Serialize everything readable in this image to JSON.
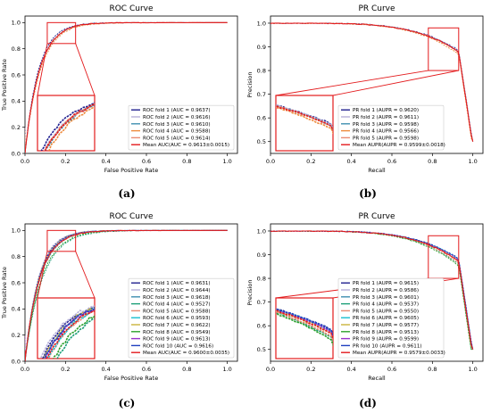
{
  "chart_data": [
    {
      "id": "a",
      "type": "line",
      "kind": "roc",
      "title": "ROC Curve",
      "xlabel": "False Positive Rate",
      "ylabel": "True Positive Rate",
      "xlim": [
        0,
        1.05
      ],
      "ylim": [
        0,
        1.05
      ],
      "xticks": [
        "0.0",
        "0.2",
        "0.4",
        "0.6",
        "0.8",
        "1.0"
      ],
      "yticks": [
        "0.0",
        "0.2",
        "0.4",
        "0.6",
        "0.8",
        "1.0"
      ],
      "legend_position": "lower-right",
      "zoom_window": {
        "x": [
          0.11,
          0.25
        ],
        "y": [
          0.84,
          1.0
        ]
      },
      "series": [
        {
          "name": "ROC fold 1 (AUC = 0.9637)",
          "color": "#1f1f8f",
          "value": 0.9637
        },
        {
          "name": "ROC fold 2 (AUC = 0.9616)",
          "color": "#b7b1d8",
          "value": 0.9616
        },
        {
          "name": "ROC fold 3 (AUC = 0.9610)",
          "color": "#3f8fb0",
          "value": 0.961
        },
        {
          "name": "ROC fold 4 (AUC = 0.9588)",
          "color": "#ee8a3b",
          "value": 0.9588
        },
        {
          "name": "ROC fold 5 (AUC = 0.9614)",
          "color": "#e98b73",
          "value": 0.9614
        },
        {
          "name": "Mean AUC(AUC = 0.9613±0.0015)",
          "color": "#e31a1c",
          "value": 0.9613
        }
      ]
    },
    {
      "id": "b",
      "type": "line",
      "kind": "pr",
      "title": "PR Curve",
      "xlabel": "Recall",
      "ylabel": "Precision",
      "xlim": [
        0,
        1.05
      ],
      "ylim": [
        0.45,
        1.03
      ],
      "xticks": [
        "0.0",
        "0.2",
        "0.4",
        "0.6",
        "0.8",
        "1.0"
      ],
      "yticks": [
        "0.5",
        "0.6",
        "0.7",
        "0.8",
        "0.9",
        "1.0"
      ],
      "legend_position": "lower-left",
      "zoom_window": {
        "x": [
          0.78,
          0.93
        ],
        "y": [
          0.8,
          0.98
        ]
      },
      "series": [
        {
          "name": "PR fold 1 (AUPR = 0.9620)",
          "color": "#1f1f8f",
          "value": 0.962
        },
        {
          "name": "PR fold 2 (AUPR = 0.9611)",
          "color": "#b7b1d8",
          "value": 0.9611
        },
        {
          "name": "PR fold 3 (AUPR = 0.9598)",
          "color": "#3f8fb0",
          "value": 0.9598
        },
        {
          "name": "PR fold 4 (AUPR = 0.9566)",
          "color": "#ee8a3b",
          "value": 0.9566
        },
        {
          "name": "PR fold 5 (AUPR = 0.9598)",
          "color": "#e98b73",
          "value": 0.9598
        },
        {
          "name": "Mean AUPR(AUPR = 0.9599±0.0018)",
          "color": "#e31a1c",
          "value": 0.9599
        }
      ]
    },
    {
      "id": "c",
      "type": "line",
      "kind": "roc",
      "title": "ROC Curve",
      "xlabel": "False Positive Rate",
      "ylabel": "True Positive Rate",
      "xlim": [
        0,
        1.05
      ],
      "ylim": [
        0,
        1.05
      ],
      "xticks": [
        "0.0",
        "0.2",
        "0.4",
        "0.6",
        "0.8",
        "1.0"
      ],
      "yticks": [
        "0.0",
        "0.2",
        "0.4",
        "0.6",
        "0.8",
        "1.0"
      ],
      "legend_position": "lower-right",
      "zoom_window": {
        "x": [
          0.11,
          0.25
        ],
        "y": [
          0.84,
          1.0
        ]
      },
      "series": [
        {
          "name": "ROC fold 1 (AUC = 0.9631)",
          "color": "#1f1f8f",
          "value": 0.9631
        },
        {
          "name": "ROC fold 2 (AUC = 0.9644)",
          "color": "#b7b1d8",
          "value": 0.9644
        },
        {
          "name": "ROC fold 3 (AUC = 0.9618)",
          "color": "#3f8fb0",
          "value": 0.9618
        },
        {
          "name": "ROC fold 4 (AUC = 0.9527)",
          "color": "#1b9e77",
          "value": 0.9527
        },
        {
          "name": "ROC fold 5 (AUC = 0.9588)",
          "color": "#e98b73",
          "value": 0.9588
        },
        {
          "name": "ROC fold 6 (AUC = 0.9593)",
          "color": "#17becf",
          "value": 0.9593
        },
        {
          "name": "ROC fold 7 (AUC = 0.9622)",
          "color": "#c9b33a",
          "value": 0.9622
        },
        {
          "name": "ROC fold 8 (AUC = 0.9549)",
          "color": "#2ca02c",
          "value": 0.9549
        },
        {
          "name": "ROC fold 9 (AUC = 0.9613)",
          "color": "#9932cc",
          "value": 0.9613
        },
        {
          "name": "ROC fold 10 (AUC = 0.9616)",
          "color": "#1f3fbf",
          "value": 0.9616
        },
        {
          "name": "Mean AUC(AUC = 0.9600±0.0035)",
          "color": "#e31a1c",
          "value": 0.96
        }
      ]
    },
    {
      "id": "d",
      "type": "line",
      "kind": "pr",
      "title": "PR Curve",
      "xlabel": "Recall",
      "ylabel": "Precision",
      "xlim": [
        0,
        1.05
      ],
      "ylim": [
        0.45,
        1.03
      ],
      "xticks": [
        "0.0",
        "0.2",
        "0.4",
        "0.6",
        "0.8",
        "1.0"
      ],
      "yticks": [
        "0.5",
        "0.6",
        "0.7",
        "0.8",
        "0.9",
        "1.0"
      ],
      "legend_position": "lower-left",
      "zoom_window": {
        "x": [
          0.78,
          0.93
        ],
        "y": [
          0.8,
          0.98
        ]
      },
      "series": [
        {
          "name": "PR fold 1 (AUPR = 0.9615)",
          "color": "#1f1f8f",
          "value": 0.9615
        },
        {
          "name": "PR fold 2 (AUPR = 0.9586)",
          "color": "#b7b1d8",
          "value": 0.9586
        },
        {
          "name": "PR fold 3 (AUPR = 0.9601)",
          "color": "#3f8fb0",
          "value": 0.9601
        },
        {
          "name": "PR fold 4 (AUPR = 0.9537)",
          "color": "#1b9e77",
          "value": 0.9537
        },
        {
          "name": "PR fold 5 (AUPR = 0.9550)",
          "color": "#e98b73",
          "value": 0.955
        },
        {
          "name": "PR fold 6 (AUPR = 0.9605)",
          "color": "#17becf",
          "value": 0.9605
        },
        {
          "name": "PR fold 7 (AUPR = 0.9577)",
          "color": "#c9b33a",
          "value": 0.9577
        },
        {
          "name": "PR fold 8 (AUPR = 0.9513)",
          "color": "#2ca02c",
          "value": 0.9513
        },
        {
          "name": "PR fold 9 (AUPR = 0.9599)",
          "color": "#9932cc",
          "value": 0.9599
        },
        {
          "name": "PR fold 10 (AUPR = 0.9611)",
          "color": "#1f3fbf",
          "value": 0.9611
        },
        {
          "name": "Mean AUPR(AUPR = 0.9579±0.0033)",
          "color": "#e31a1c",
          "value": 0.9579
        }
      ]
    }
  ],
  "captions": [
    "(a)",
    "(b)",
    "(c)",
    "(d)"
  ],
  "colors": {
    "zoom_box": "#e31a1c",
    "axis": "#000000",
    "legend_border": "#cccccc"
  }
}
